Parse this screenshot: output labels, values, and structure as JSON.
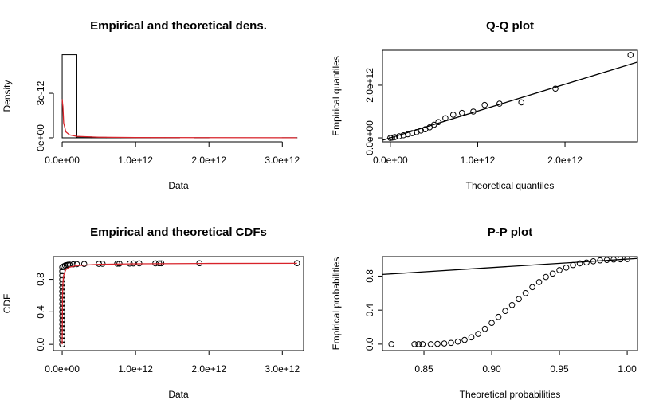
{
  "chart_data": [
    {
      "type": "histogram",
      "title": "Empirical and theoretical dens.",
      "x_label": "Data",
      "y_label": "Density",
      "box": false,
      "bins": [
        0,
        200000000000.0,
        400000000000.0,
        600000000000.0,
        800000000000.0,
        1000000000000.0,
        1200000000000.0,
        1400000000000.0,
        1600000000000.0,
        1800000000000.0,
        2000000000000.0,
        2200000000000.0,
        2400000000000.0,
        2600000000000.0,
        2800000000000.0,
        3000000000000.0,
        3200000000000.0
      ],
      "values": [
        5.6e-12,
        6e-14,
        3e-14,
        2e-14,
        1e-14,
        5e-15,
        5e-15,
        5e-15,
        0,
        5e-15,
        0,
        0,
        0,
        0,
        0,
        5e-15
      ],
      "color": "#000000",
      "curve": {
        "x": [
          1000000000.0,
          5000000000.0,
          10000000000.0,
          20000000000.0,
          50000000000.0,
          100000000000.0,
          200000000000.0,
          500000000000.0,
          1000000000000.0,
          2000000000000.0,
          3200000000000.0
        ],
        "y": [
          2.6e-12,
          2.3e-12,
          2.1e-12,
          1e-12,
          4e-13,
          2e-13,
          1e-13,
          4e-14,
          2e-14,
          1e-14,
          5e-15
        ],
        "color": "#d8232a"
      },
      "xlim": [
        -120000000000.0,
        3290000000000.0
      ],
      "ylim": [
        -2.7e-13,
        5.9e-12
      ],
      "xticks": [
        {
          "value": 0,
          "label": "0.0e+00"
        },
        {
          "value": 1000000000000.0,
          "label": "1.0e+12"
        },
        {
          "value": 2000000000000.0,
          "label": "2.0e+12"
        },
        {
          "value": 3000000000000.0,
          "label": "3.0e+12"
        }
      ],
      "yticks": [
        {
          "value": 0,
          "label": "0e+00"
        },
        {
          "value": 3e-12,
          "label": "3e-12"
        }
      ]
    },
    {
      "type": "scatter",
      "title": "Q-Q plot",
      "x_label": "Theoretical quantiles",
      "y_label": "Empirical quantiles",
      "box": true,
      "color": "#000000",
      "x": [
        0,
        20000000000.0,
        50000000000.0,
        100000000000.0,
        150000000000.0,
        200000000000.0,
        250000000000.0,
        300000000000.0,
        350000000000.0,
        400000000000.0,
        450000000000.0,
        500000000000.0,
        550000000000.0,
        630000000000.0,
        720000000000.0,
        820000000000.0,
        950000000000.0,
        1080000000000.0,
        1250000000000.0,
        1500000000000.0,
        1890000000000.0,
        2750000000000.0
      ],
      "values": [
        0,
        10000000000.0,
        30000000000.0,
        60000000000.0,
        100000000000.0,
        140000000000.0,
        180000000000.0,
        220000000000.0,
        280000000000.0,
        330000000000.0,
        400000000000.0,
        500000000000.0,
        600000000000.0,
        750000000000.0,
        880000000000.0,
        950000000000.0,
        1000000000000.0,
        1250000000000.0,
        1300000000000.0,
        1350000000000.0,
        1870000000000.0,
        3150000000000.0
      ],
      "line": {
        "x": [
          -90000000000.0,
          2830000000000.0
        ],
        "y": [
          -90000000000.0,
          2880000000000.0
        ],
        "color": "#000000"
      },
      "xlim": [
        -90000000000.0,
        2830000000000.0
      ],
      "ylim": [
        -150000000000.0,
        3330000000000.0
      ],
      "xticks": [
        {
          "value": 0,
          "label": "0.0e+00"
        },
        {
          "value": 1000000000000.0,
          "label": "1.0e+12"
        },
        {
          "value": 2000000000000.0,
          "label": "2.0e+12"
        }
      ],
      "yticks": [
        {
          "value": 0,
          "label": "0.0e+00"
        },
        {
          "value": 2000000000000.0,
          "label": "2.0e+12"
        }
      ]
    },
    {
      "type": "scatter",
      "title": "Empirical and theoretical CDFs",
      "x_label": "Data",
      "y_label": "CDF",
      "box": true,
      "color": "#000000",
      "x": [
        1000000000.0,
        1000000000.0,
        1000000000.0,
        1000000000.0,
        1000000000.0,
        1000000000.0,
        1000000000.0,
        1000000000.0,
        1000000000.0,
        1000000000.0,
        1000000000.0,
        1000000000.0,
        1000000000.0,
        1000000000.0,
        1000000000.0,
        1000000000.0,
        1000000000.0,
        1000000000.0,
        1000000000.0,
        1000000000.0,
        20000000000.0,
        40000000000.0,
        60000000000.0,
        80000000000.0,
        100000000000.0,
        150000000000.0,
        200000000000.0,
        300000000000.0,
        500000000000.0,
        550000000000.0,
        750000000000.0,
        780000000000.0,
        920000000000.0,
        970000000000.0,
        1050000000000.0,
        1270000000000.0,
        1320000000000.0,
        1350000000000.0,
        1870000000000.0,
        3200000000000.0
      ],
      "values": [
        0,
        0.05,
        0.1,
        0.15,
        0.2,
        0.25,
        0.3,
        0.35,
        0.4,
        0.45,
        0.5,
        0.55,
        0.6,
        0.65,
        0.7,
        0.75,
        0.8,
        0.85,
        0.9,
        0.95,
        0.96,
        0.97,
        0.975,
        0.98,
        0.982,
        0.985,
        0.987,
        0.99,
        0.991,
        0.992,
        0.993,
        0.994,
        0.995,
        0.996,
        0.997,
        0.997,
        0.998,
        0.998,
        0.999,
        1
      ],
      "curve": {
        "x": [
          0,
          5000000000.0,
          10000000000.0,
          20000000000.0,
          50000000000.0,
          100000000000.0,
          200000000000.0,
          500000000000.0,
          1000000000000.0,
          2000000000000.0,
          3200000000000.0
        ],
        "y": [
          0,
          0.6,
          0.75,
          0.85,
          0.92,
          0.95,
          0.97,
          0.985,
          0.992,
          0.996,
          0.998
        ],
        "color": "#d8232a"
      },
      "xlim": [
        -120000000000.0,
        3290000000000.0
      ],
      "ylim": [
        -0.077,
        1.08
      ],
      "xticks": [
        {
          "value": 0,
          "label": "0.0e+00"
        },
        {
          "value": 1000000000000.0,
          "label": "1.0e+12"
        },
        {
          "value": 2000000000000.0,
          "label": "2.0e+12"
        },
        {
          "value": 3000000000000.0,
          "label": "3.0e+12"
        }
      ],
      "yticks": [
        {
          "value": 0,
          "label": "0.0"
        },
        0.4,
        0.8
      ]
    },
    {
      "type": "scatter",
      "title": "P-P plot",
      "x_label": "Theoretical probabilities",
      "y_label": "Empirical probabilities",
      "box": true,
      "color": "#000000",
      "x": [
        0.826,
        0.843,
        0.846,
        0.849,
        0.855,
        0.86,
        0.865,
        0.87,
        0.875,
        0.88,
        0.885,
        0.89,
        0.895,
        0.9,
        0.905,
        0.91,
        0.915,
        0.92,
        0.925,
        0.93,
        0.935,
        0.94,
        0.945,
        0.95,
        0.955,
        0.96,
        0.965,
        0.97,
        0.975,
        0.98,
        0.985,
        0.99,
        0.995,
        1
      ],
      "values": [
        0,
        0,
        0,
        0,
        0,
        0.003,
        0.008,
        0.015,
        0.03,
        0.05,
        0.08,
        0.12,
        0.18,
        0.25,
        0.32,
        0.39,
        0.46,
        0.53,
        0.6,
        0.67,
        0.73,
        0.79,
        0.83,
        0.87,
        0.9,
        0.93,
        0.95,
        0.96,
        0.975,
        0.985,
        0.99,
        0.995,
        0.998,
        1
      ],
      "line": {
        "x": [
          0.8194,
          1.0076
        ],
        "y": [
          0.8194,
          1.0076
        ],
        "color": "#000000"
      },
      "xlim": [
        0.8194,
        1.0076
      ],
      "ylim": [
        -0.076,
        1.029
      ],
      "xticks": [
        0.85,
        {
          "value": 0.9,
          "label": "0.90"
        },
        0.95,
        {
          "value": 1,
          "label": "1.00"
        }
      ],
      "yticks": [
        {
          "value": 0,
          "label": "0.0"
        },
        0.4,
        0.8
      ]
    }
  ]
}
